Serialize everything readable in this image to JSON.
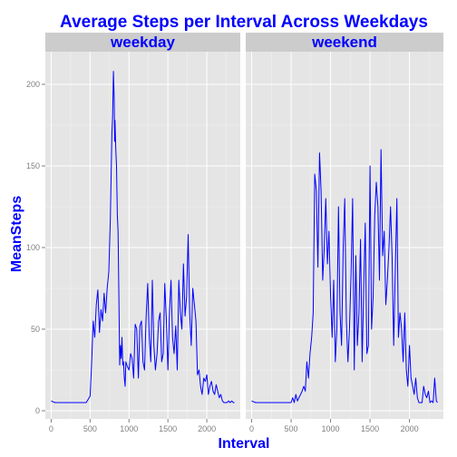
{
  "chart_data": {
    "type": "line",
    "title": "Average Steps per Interval Across Weekdays",
    "xlabel": "Interval",
    "ylabel": "MeanSteps",
    "xlim": [
      -75,
      2430
    ],
    "ylim": [
      -5,
      220
    ],
    "x_ticks": [
      0,
      500,
      1000,
      1500,
      2000
    ],
    "y_ticks": [
      0,
      50,
      100,
      150,
      200
    ],
    "grid": true,
    "line_color": "#0000ff",
    "panels": [
      {
        "strip": "weekday",
        "series": [
          {
            "x": [
              0,
              50,
              100,
              150,
              200,
              250,
              300,
              350,
              400,
              450,
              500,
              520,
              540,
              560,
              580,
              600,
              620,
              640,
              660,
              680,
              700,
              720,
              740,
              760,
              780,
              790,
              800,
              810,
              815,
              820,
              830,
              840,
              850,
              860,
              870,
              880,
              890,
              900,
              910,
              920,
              930,
              940,
              950,
              960,
              980,
              1000,
              1020,
              1040,
              1060,
              1080,
              1100,
              1120,
              1140,
              1160,
              1180,
              1200,
              1220,
              1240,
              1260,
              1280,
              1300,
              1320,
              1340,
              1360,
              1380,
              1400,
              1420,
              1440,
              1460,
              1480,
              1500,
              1520,
              1540,
              1560,
              1580,
              1600,
              1620,
              1640,
              1660,
              1680,
              1700,
              1720,
              1740,
              1760,
              1780,
              1800,
              1820,
              1840,
              1860,
              1880,
              1900,
              1920,
              1940,
              1960,
              1980,
              2000,
              2020,
              2040,
              2060,
              2080,
              2100,
              2120,
              2140,
              2160,
              2180,
              2200,
              2220,
              2240,
              2260,
              2280,
              2300,
              2320,
              2340,
              2355
            ],
            "y": [
              6,
              5,
              5,
              5,
              5,
              5,
              5,
              5,
              5,
              5,
              9,
              30,
              55,
              45,
              65,
              74,
              48,
              62,
              55,
              72,
              60,
              75,
              85,
              118,
              170,
              180,
              208,
              190,
              165,
              178,
              160,
              150,
              120,
              110,
              70,
              28,
              40,
              32,
              45,
              28,
              30,
              20,
              15,
              30,
              27,
              25,
              35,
              32,
              20,
              53,
              50,
              20,
              52,
              55,
              30,
              25,
              57,
              78,
              45,
              30,
              80,
              40,
              25,
              35,
              55,
              60,
              30,
              35,
              78,
              55,
              25,
              60,
              80,
              45,
              35,
              52,
              25,
              80,
              60,
              50,
              90,
              58,
              70,
              108,
              60,
              40,
              75,
              65,
              55,
              22,
              25,
              15,
              10,
              20,
              18,
              22,
              10,
              15,
              18,
              12,
              10,
              16,
              12,
              8,
              10,
              6,
              5,
              5,
              5,
              6,
              5,
              6,
              5,
              5
            ]
          }
        ]
      },
      {
        "strip": "weekend",
        "series": [
          {
            "x": [
              0,
              50,
              100,
              150,
              200,
              250,
              300,
              350,
              400,
              450,
              500,
              520,
              540,
              560,
              580,
              600,
              620,
              640,
              660,
              680,
              700,
              720,
              740,
              760,
              780,
              800,
              820,
              840,
              860,
              880,
              900,
              920,
              940,
              960,
              980,
              1000,
              1020,
              1040,
              1060,
              1080,
              1100,
              1120,
              1140,
              1160,
              1180,
              1200,
              1220,
              1240,
              1260,
              1280,
              1300,
              1320,
              1340,
              1360,
              1380,
              1400,
              1420,
              1440,
              1460,
              1480,
              1500,
              1520,
              1540,
              1560,
              1580,
              1600,
              1620,
              1640,
              1660,
              1680,
              1700,
              1720,
              1740,
              1760,
              1780,
              1800,
              1820,
              1840,
              1860,
              1880,
              1900,
              1920,
              1940,
              1960,
              1980,
              2000,
              2020,
              2040,
              2060,
              2080,
              2100,
              2120,
              2140,
              2160,
              2180,
              2200,
              2220,
              2240,
              2260,
              2280,
              2300,
              2320,
              2340,
              2355
            ],
            "y": [
              6,
              5,
              5,
              5,
              5,
              5,
              5,
              5,
              5,
              5,
              5,
              8,
              5,
              10,
              6,
              8,
              10,
              12,
              15,
              12,
              30,
              20,
              35,
              45,
              60,
              145,
              135,
              88,
              158,
              135,
              80,
              100,
              130,
              90,
              110,
              70,
              45,
              80,
              30,
              50,
              125,
              60,
              40,
              100,
              130,
              55,
              30,
              50,
              85,
              130,
              25,
              95,
              40,
              60,
              105,
              30,
              75,
              115,
              35,
              40,
              150,
              50,
              70,
              120,
              140,
              125,
              80,
              160,
              95,
              110,
              65,
              80,
              100,
              125,
              95,
              40,
              85,
              130,
              45,
              60,
              50,
              30,
              60,
              25,
              15,
              40,
              20,
              15,
              10,
              20,
              8,
              5,
              5,
              5,
              15,
              10,
              8,
              12,
              5,
              6,
              5,
              20,
              6,
              5
            ]
          }
        ]
      }
    ]
  }
}
